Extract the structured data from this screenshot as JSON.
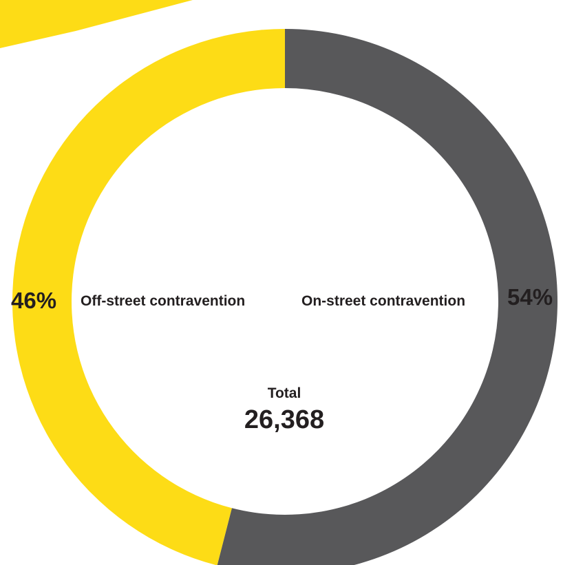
{
  "chart_data": {
    "type": "pie",
    "variant": "donut",
    "slices": [
      {
        "label": "On-street contravention",
        "percent_label": "54%",
        "value": 54,
        "color": "#58585a"
      },
      {
        "label": "Off-street contravention",
        "percent_label": "46%",
        "value": 46,
        "color": "#fddc16"
      }
    ],
    "center": {
      "label": "Total",
      "value": "26,368"
    },
    "accent_color": "#fddc16"
  }
}
